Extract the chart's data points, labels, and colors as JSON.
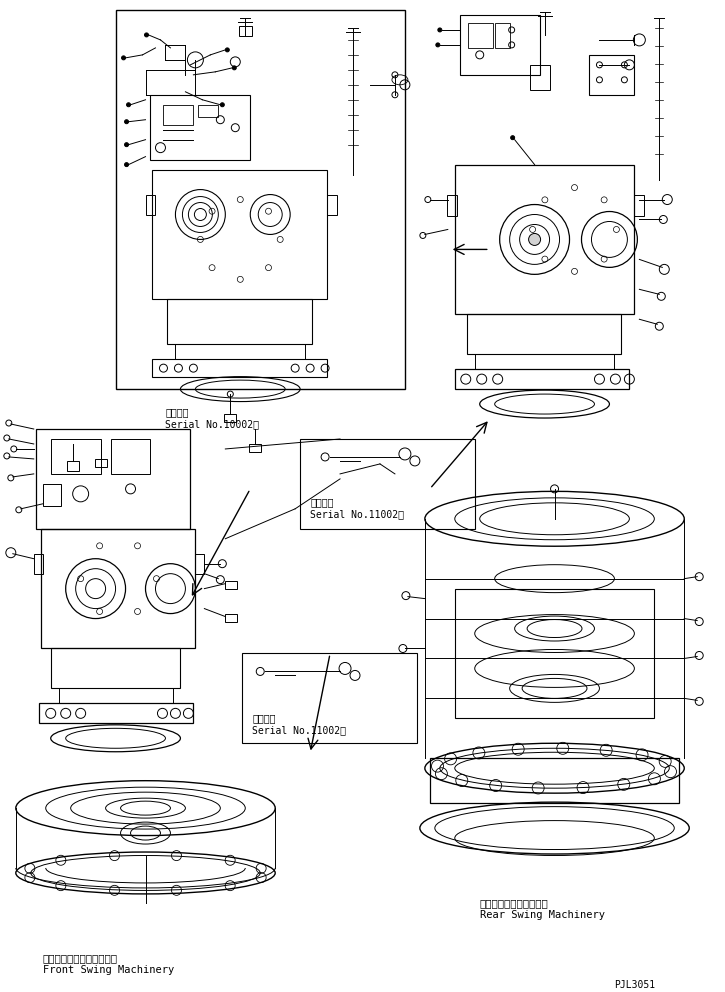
{
  "bg_color": "#ffffff",
  "line_color": "#000000",
  "fig_width": 7.25,
  "fig_height": 9.92,
  "dpi": 100,
  "title_code": "PJL3051",
  "labels": {
    "front_swing_jp": "フロントスイングマシナリ",
    "front_swing_en": "Front Swing Machinery",
    "rear_swing_jp": "リヤースイングマシナリ",
    "rear_swing_en": "Rear Swing Machinery",
    "serial_10002_jp": "適用号機",
    "serial_10002": "Serial No.10002～",
    "serial_11002_jp1": "適用号機",
    "serial_11002_1": "Serial No.11002～",
    "serial_11002_jp2": "適用号機",
    "serial_11002_2": "Serial No.11002～"
  },
  "font_size_label": 7.5,
  "font_size_code": 7,
  "font_family": "monospace"
}
